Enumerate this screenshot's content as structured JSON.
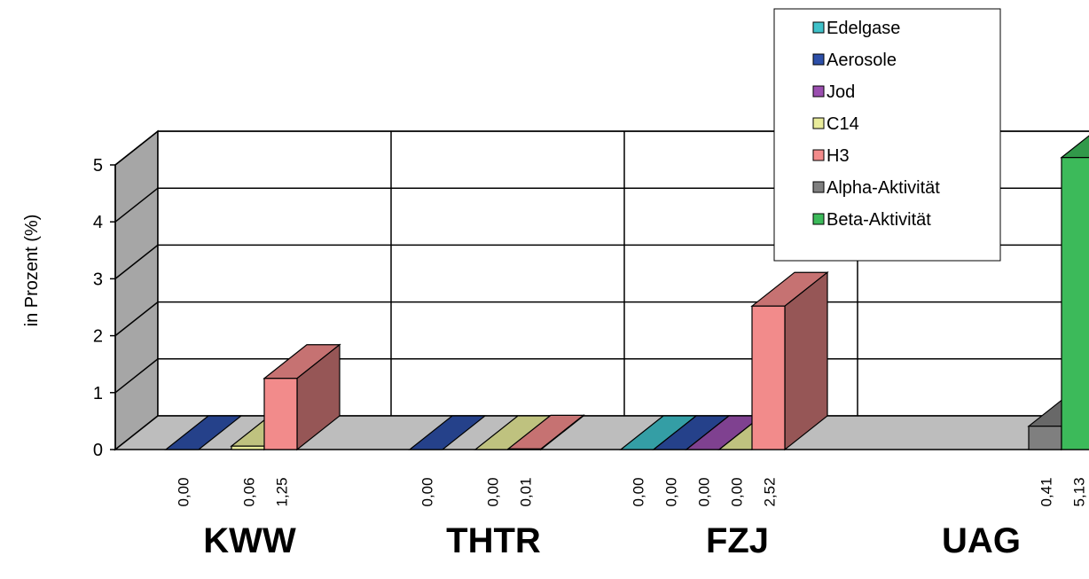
{
  "chart_data": {
    "type": "bar",
    "title": "",
    "xlabel": "",
    "ylabel": "in Prozent (%)",
    "ylim": [
      0,
      5
    ],
    "yticks": [
      "0",
      "1",
      "2",
      "3",
      "4",
      "5"
    ],
    "grid": true,
    "legend_position": "top-right",
    "categories": [
      "KWW",
      "THTR",
      "FZJ",
      "UAG"
    ],
    "series": [
      {
        "name": "Edelgase",
        "color": "#3fc1c9",
        "values": [
          null,
          null,
          0.0,
          null
        ],
        "labels": [
          null,
          null,
          "0,00",
          null
        ]
      },
      {
        "name": "Aerosole",
        "color": "#2d4fa8",
        "values": [
          0.0,
          0.0,
          0.0,
          null
        ],
        "labels": [
          "0,00",
          "0,00",
          "0,00",
          null
        ]
      },
      {
        "name": "Jod",
        "color": "#9b4fb0",
        "values": [
          null,
          null,
          0.0,
          null
        ],
        "labels": [
          null,
          null,
          "0,00",
          null
        ]
      },
      {
        "name": "C14",
        "color": "#e9ec9b",
        "values": [
          0.06,
          0.0,
          0.0,
          null
        ],
        "labels": [
          "0,06",
          "0,00",
          "0,00",
          null
        ]
      },
      {
        "name": "H3",
        "color": "#f28b8b",
        "values": [
          1.25,
          0.01,
          2.52,
          null
        ],
        "labels": [
          "1,25",
          "0,01",
          "2,52",
          null
        ]
      },
      {
        "name": "Alpha-Aktivität",
        "color": "#7f7f7f",
        "values": [
          null,
          null,
          null,
          0.41
        ],
        "labels": [
          null,
          null,
          null,
          "0,41"
        ]
      },
      {
        "name": "Beta-Aktivität",
        "color": "#3cba5a",
        "values": [
          null,
          null,
          null,
          5.13
        ],
        "labels": [
          null,
          null,
          null,
          "5,13"
        ]
      }
    ]
  }
}
